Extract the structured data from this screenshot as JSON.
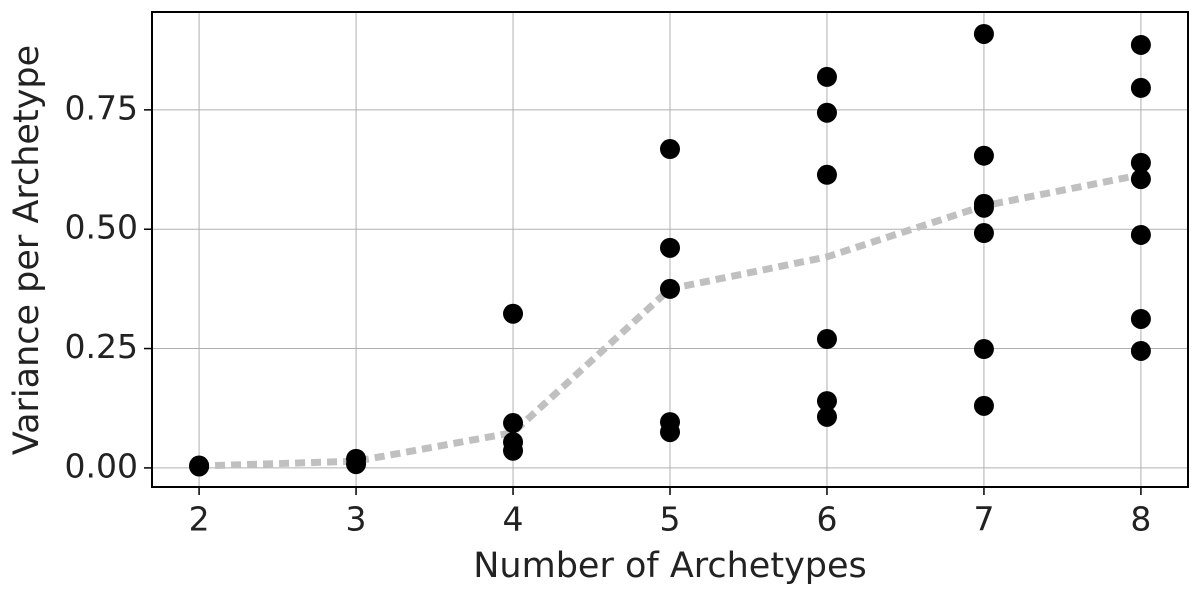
{
  "chart_data": {
    "type": "scatter",
    "xlabel": "Number of Archetypes",
    "ylabel": "Variance per Archetype",
    "xlim": [
      1.7,
      8.3
    ],
    "ylim": [
      -0.04,
      0.955
    ],
    "xticks": [
      2,
      3,
      4,
      5,
      6,
      7,
      8
    ],
    "yticks": [
      {
        "value": 0,
        "label": "0.00"
      },
      {
        "value": 0.25,
        "label": "0.25"
      },
      {
        "value": 0.5,
        "label": "0.50"
      },
      {
        "value": 0.75,
        "label": "0.75"
      }
    ],
    "grid": true,
    "series": [
      {
        "type": "scatter",
        "color": "#000000",
        "x": [
          2,
          2,
          3,
          3,
          4,
          4,
          4,
          4,
          5,
          5,
          5,
          5,
          5,
          6,
          6,
          6,
          6,
          6,
          6,
          7,
          7,
          7,
          7,
          7,
          7,
          7,
          8,
          8,
          8,
          8,
          8,
          8,
          8
        ],
        "values": [
          0.005,
          0.003,
          0.019,
          0.008,
          0.323,
          0.094,
          0.054,
          0.036,
          0.668,
          0.461,
          0.375,
          0.096,
          0.075,
          0.819,
          0.744,
          0.614,
          0.27,
          0.14,
          0.107,
          0.909,
          0.654,
          0.553,
          0.545,
          0.492,
          0.249,
          0.13,
          0.886,
          0.796,
          0.639,
          0.605,
          0.488,
          0.312,
          0.245
        ]
      },
      {
        "type": "line",
        "color": "#c0c0c0",
        "x": [
          2,
          3,
          4,
          5,
          6,
          7,
          8
        ],
        "values": [
          0.004,
          0.014,
          0.074,
          0.375,
          0.442,
          0.549,
          0.614
        ]
      }
    ]
  }
}
